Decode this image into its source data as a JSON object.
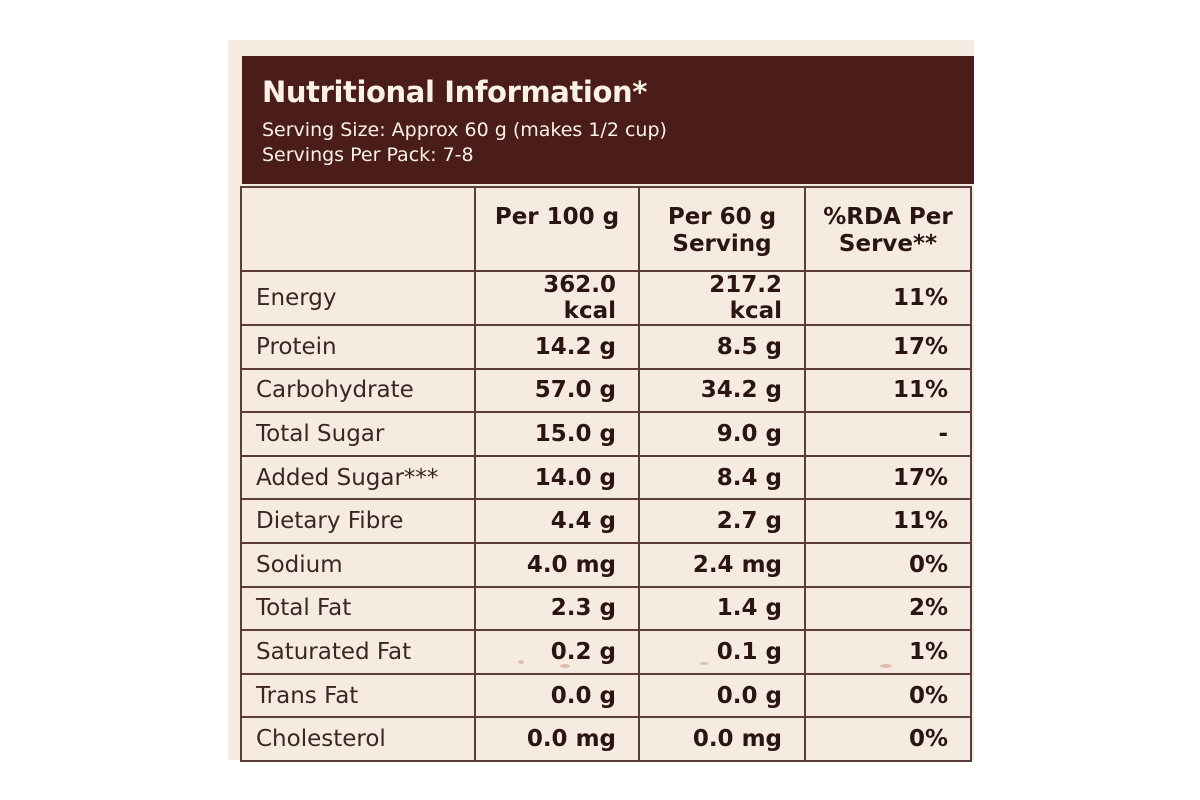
{
  "header": {
    "title": "Nutritional Information*",
    "serving_size": "Serving Size: Approx 60 g (makes 1/2 cup)",
    "servings_per_pack": "Servings Per Pack: 7-8"
  },
  "table": {
    "columns": [
      "",
      "Per 100 g",
      "Per 60 g Serving",
      "%RDA Per Serve**"
    ],
    "rows": [
      {
        "nutrient": "Energy",
        "per100": "362.0 kcal",
        "per60": "217.2 kcal",
        "rda": "11%"
      },
      {
        "nutrient": "Protein",
        "per100": "14.2 g",
        "per60": "8.5 g",
        "rda": "17%"
      },
      {
        "nutrient": "Carbohydrate",
        "per100": "57.0 g",
        "per60": "34.2 g",
        "rda": "11%"
      },
      {
        "nutrient": "Total Sugar",
        "per100": "15.0 g",
        "per60": "9.0 g",
        "rda": "-"
      },
      {
        "nutrient": "Added Sugar***",
        "per100": "14.0 g",
        "per60": "8.4 g",
        "rda": "17%"
      },
      {
        "nutrient": "Dietary Fibre",
        "per100": "4.4 g",
        "per60": "2.7 g",
        "rda": "11%"
      },
      {
        "nutrient": "Sodium",
        "per100": "4.0 mg",
        "per60": "2.4 mg",
        "rda": "0%"
      },
      {
        "nutrient": "Total Fat",
        "per100": "2.3 g",
        "per60": "1.4 g",
        "rda": "2%"
      },
      {
        "nutrient": "Saturated Fat",
        "per100": "0.2 g",
        "per60": "0.1 g",
        "rda": "1%"
      },
      {
        "nutrient": "Trans Fat",
        "per100": "0.0 g",
        "per60": "0.0 g",
        "rda": "0%"
      },
      {
        "nutrient": "Cholesterol",
        "per100": "0.0 mg",
        "per60": "0.0 mg",
        "rda": "0%"
      }
    ]
  },
  "colors": {
    "header_background": "#4a1d18",
    "panel_background": "#f6ebe0",
    "text": "#2a1512"
  }
}
